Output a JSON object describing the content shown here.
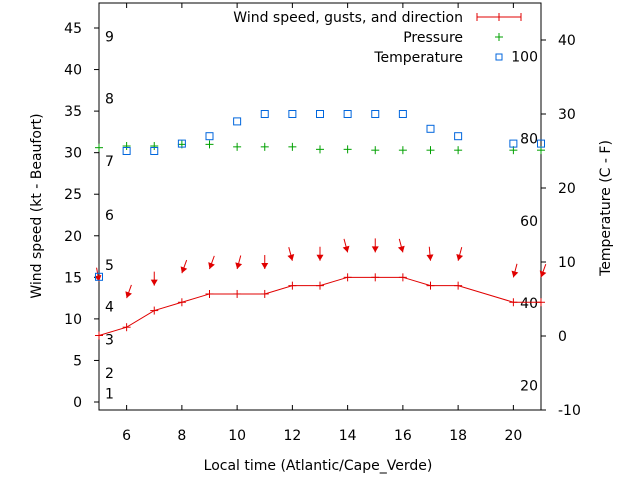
{
  "chart_data": {
    "type": "line",
    "title": "",
    "xlabel": "Local time (Atlantic/Cape_Verde)",
    "ylabel": "Wind speed (kt - Beaufort)",
    "y2label": "Temperature (C - F)",
    "xlim": [
      5,
      21
    ],
    "ylim": [
      -1,
      48
    ],
    "y2lim": [
      -10,
      45
    ],
    "grid": false,
    "legend_position": "top-right",
    "x_ticks": [
      "6",
      "8",
      "10",
      "12",
      "14",
      "16",
      "18",
      "20"
    ],
    "x_tick_values": [
      6,
      8,
      10,
      12,
      14,
      16,
      18,
      20
    ],
    "y_ticks": [
      "0",
      "5",
      "10",
      "15",
      "20",
      "25",
      "30",
      "35",
      "40",
      "45"
    ],
    "y_tick_values": [
      0,
      5,
      10,
      15,
      20,
      25,
      30,
      35,
      40,
      45
    ],
    "beaufort_labels": [
      "1",
      "2",
      "3",
      "4",
      "5",
      "6",
      "7",
      "8",
      "9"
    ],
    "beaufort_values": [
      1,
      3.5,
      7.5,
      11.5,
      16.5,
      22.5,
      29,
      36.5,
      44
    ],
    "y2_ticks": [
      "-10",
      "0",
      "10",
      "20",
      "30",
      "40"
    ],
    "y2_tick_values": [
      -10,
      0,
      10,
      20,
      30,
      40
    ],
    "fahrenheit_labels": [
      "20",
      "40",
      "60",
      "80",
      "100"
    ],
    "fahrenheit_values": [
      20,
      40,
      60,
      80,
      100
    ],
    "series": [
      {
        "name": "Wind speed, gusts, and direction",
        "color": "#e00000",
        "axis": "left",
        "x": [
          5,
          6,
          7,
          8,
          9,
          10,
          11,
          12,
          13,
          14,
          15,
          16,
          17,
          18,
          20,
          21
        ],
        "values": [
          8,
          9,
          11,
          12,
          13,
          13,
          13,
          14,
          14,
          15,
          15,
          15,
          14,
          14,
          12,
          12
        ],
        "gusts": [
          14.5,
          12.5,
          14,
          15.5,
          16,
          16,
          16,
          17,
          17,
          18,
          18,
          18,
          17,
          17,
          15,
          15
        ],
        "direction_deg": [
          350,
          20,
          360,
          20,
          20,
          15,
          360,
          345,
          360,
          345,
          360,
          345,
          355,
          15,
          15,
          20
        ]
      },
      {
        "name": "Pressure",
        "color": "#00a000",
        "axis": "left",
        "x": [
          5,
          6,
          7,
          8,
          9,
          10,
          11,
          12,
          13,
          14,
          15,
          16,
          17,
          18,
          20,
          21
        ],
        "values": [
          30.6,
          30.8,
          30.8,
          31.0,
          31.0,
          30.7,
          30.7,
          30.7,
          30.4,
          30.4,
          30.3,
          30.3,
          30.3,
          30.3,
          30.3,
          30.3
        ]
      },
      {
        "name": "Temperature",
        "color": "#0066dd",
        "axis": "right",
        "x": [
          5,
          6,
          7,
          8,
          9,
          10,
          11,
          12,
          13,
          14,
          15,
          16,
          17,
          18,
          20,
          21
        ],
        "values": [
          8,
          25,
          25,
          26,
          27,
          29,
          30,
          30,
          30,
          30,
          30,
          30,
          28,
          27,
          26,
          26
        ]
      }
    ]
  }
}
